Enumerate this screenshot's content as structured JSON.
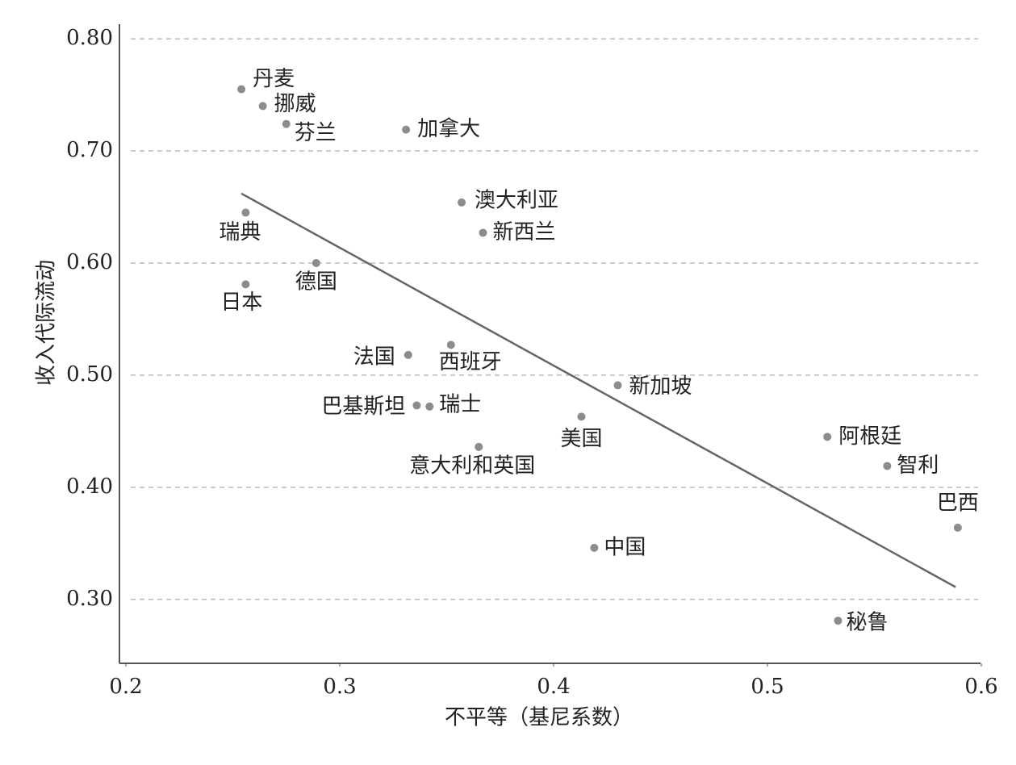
{
  "chart_data": {
    "type": "scatter",
    "xlabel": "不平等（基尼系数）",
    "ylabel": "收入代际流动",
    "labels": [
      "丹麦",
      "挪威",
      "芬兰",
      "加拿大",
      "澳大利亚",
      "新西兰",
      "瑞典",
      "德国",
      "日本",
      "法国",
      "西班牙",
      "新加坡",
      "巴基斯坦",
      "瑞士",
      "美国",
      "意大利和英国",
      "阿根廷",
      "智利",
      "巴西",
      "中国",
      "秘鲁"
    ],
    "x": [
      0.254,
      0.264,
      0.275,
      0.331,
      0.357,
      0.367,
      0.256,
      0.289,
      0.256,
      0.332,
      0.352,
      0.43,
      0.336,
      0.342,
      0.413,
      0.365,
      0.528,
      0.556,
      0.589,
      0.419,
      0.533
    ],
    "values": [
      0.755,
      0.74,
      0.724,
      0.719,
      0.654,
      0.627,
      0.645,
      0.6,
      0.581,
      0.518,
      0.527,
      0.491,
      0.473,
      0.472,
      0.463,
      0.436,
      0.445,
      0.419,
      0.364,
      0.346,
      0.281
    ],
    "color": "#8c8c8c",
    "trend_line": {
      "x": [
        0.254,
        0.588
      ],
      "y": [
        0.662,
        0.311
      ],
      "color": "#666666"
    },
    "xlim": [
      0.2,
      0.6
    ],
    "ylim": [
      0.243,
      0.813
    ],
    "xticks": [
      0.2,
      0.3,
      0.4,
      0.5,
      0.6
    ],
    "yticks": [
      {
        "value": 0.3,
        "label": "0.30"
      },
      {
        "value": 0.4,
        "label": "0.40"
      },
      {
        "value": 0.5,
        "label": "0.50"
      },
      {
        "value": 0.6,
        "label": "0.60"
      },
      {
        "value": 0.7,
        "label": "0.70"
      },
      {
        "value": 0.8,
        "label": "0.80"
      }
    ],
    "grid": true
  }
}
